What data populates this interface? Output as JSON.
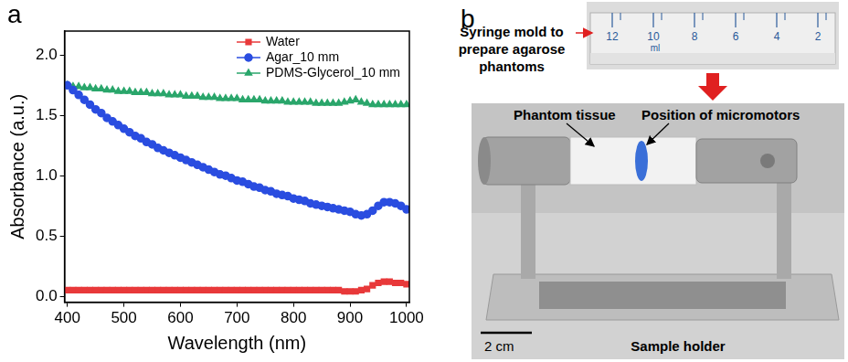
{
  "panel_labels": [
    "a",
    "b"
  ],
  "chart_data": {
    "type": "line",
    "xlabel": "Wavelength (nm)",
    "ylabel": "Absorbance (a.u.)",
    "x": [
      400,
      410,
      420,
      430,
      440,
      450,
      460,
      470,
      480,
      490,
      500,
      510,
      520,
      530,
      540,
      550,
      560,
      570,
      580,
      590,
      600,
      610,
      620,
      630,
      640,
      650,
      660,
      670,
      680,
      690,
      700,
      710,
      720,
      730,
      740,
      750,
      760,
      770,
      780,
      790,
      800,
      810,
      820,
      830,
      840,
      850,
      860,
      870,
      880,
      890,
      900,
      910,
      920,
      930,
      940,
      950,
      960,
      970,
      980,
      990,
      1000
    ],
    "series": [
      {
        "name": "Water",
        "color": "#e8393a",
        "marker": "square",
        "values": [
          0.05,
          0.05,
          0.05,
          0.05,
          0.05,
          0.05,
          0.05,
          0.05,
          0.05,
          0.05,
          0.05,
          0.05,
          0.05,
          0.05,
          0.05,
          0.05,
          0.05,
          0.05,
          0.05,
          0.05,
          0.05,
          0.05,
          0.05,
          0.05,
          0.05,
          0.05,
          0.05,
          0.05,
          0.05,
          0.05,
          0.05,
          0.05,
          0.05,
          0.05,
          0.05,
          0.05,
          0.05,
          0.05,
          0.05,
          0.05,
          0.05,
          0.05,
          0.05,
          0.05,
          0.05,
          0.05,
          0.05,
          0.05,
          0.05,
          0.04,
          0.04,
          0.04,
          0.05,
          0.06,
          0.09,
          0.11,
          0.12,
          0.12,
          0.11,
          0.11,
          0.1
        ]
      },
      {
        "name": "Agar_10 mm",
        "color": "#2a4de0",
        "marker": "circle",
        "values": [
          1.75,
          1.71,
          1.67,
          1.63,
          1.59,
          1.55,
          1.52,
          1.48,
          1.45,
          1.42,
          1.39,
          1.36,
          1.33,
          1.31,
          1.28,
          1.26,
          1.23,
          1.21,
          1.19,
          1.17,
          1.15,
          1.13,
          1.11,
          1.09,
          1.07,
          1.05,
          1.03,
          1.01,
          1.0,
          0.98,
          0.96,
          0.95,
          0.93,
          0.91,
          0.9,
          0.88,
          0.87,
          0.85,
          0.84,
          0.83,
          0.81,
          0.8,
          0.79,
          0.77,
          0.76,
          0.75,
          0.74,
          0.73,
          0.72,
          0.71,
          0.7,
          0.68,
          0.67,
          0.68,
          0.71,
          0.75,
          0.78,
          0.78,
          0.77,
          0.75,
          0.72
        ]
      },
      {
        "name": "PDMS-Glycerol_10 mm",
        "color": "#2aa66b",
        "marker": "triangle",
        "values": [
          1.75,
          1.74,
          1.74,
          1.73,
          1.73,
          1.72,
          1.72,
          1.71,
          1.71,
          1.7,
          1.7,
          1.7,
          1.69,
          1.69,
          1.69,
          1.68,
          1.68,
          1.68,
          1.67,
          1.67,
          1.67,
          1.66,
          1.66,
          1.66,
          1.65,
          1.65,
          1.65,
          1.64,
          1.64,
          1.64,
          1.64,
          1.63,
          1.63,
          1.63,
          1.63,
          1.62,
          1.62,
          1.62,
          1.62,
          1.61,
          1.61,
          1.61,
          1.61,
          1.61,
          1.6,
          1.6,
          1.6,
          1.6,
          1.6,
          1.61,
          1.62,
          1.63,
          1.61,
          1.6,
          1.59,
          1.59,
          1.59,
          1.59,
          1.59,
          1.59,
          1.59
        ]
      }
    ],
    "xlim": [
      395,
      1005
    ],
    "xticks": [
      400,
      500,
      600,
      700,
      800,
      900,
      1000
    ],
    "ylim": [
      -0.05,
      2.2
    ],
    "yticks": [
      {
        "value": 0,
        "label": "0.0"
      },
      {
        "value": 0.5,
        "label": "0.5"
      },
      {
        "value": 1,
        "label": "1.0"
      },
      {
        "value": 1.5,
        "label": "1.5"
      },
      {
        "value": 2,
        "label": "2.0"
      }
    ],
    "grid": false,
    "legend": "upper right"
  },
  "panel_b": {
    "syringe_label": "Syringe mold to prepare agarose phantoms",
    "syringe_marks": [
      "12",
      "10",
      "8",
      "6",
      "4",
      "2"
    ],
    "syringe_unit": "ml",
    "phantom_label": "Phantom tissue",
    "micromotor_label": "Position of micromotors",
    "holder_label": "Sample holder",
    "scale_bar": "2 cm"
  }
}
